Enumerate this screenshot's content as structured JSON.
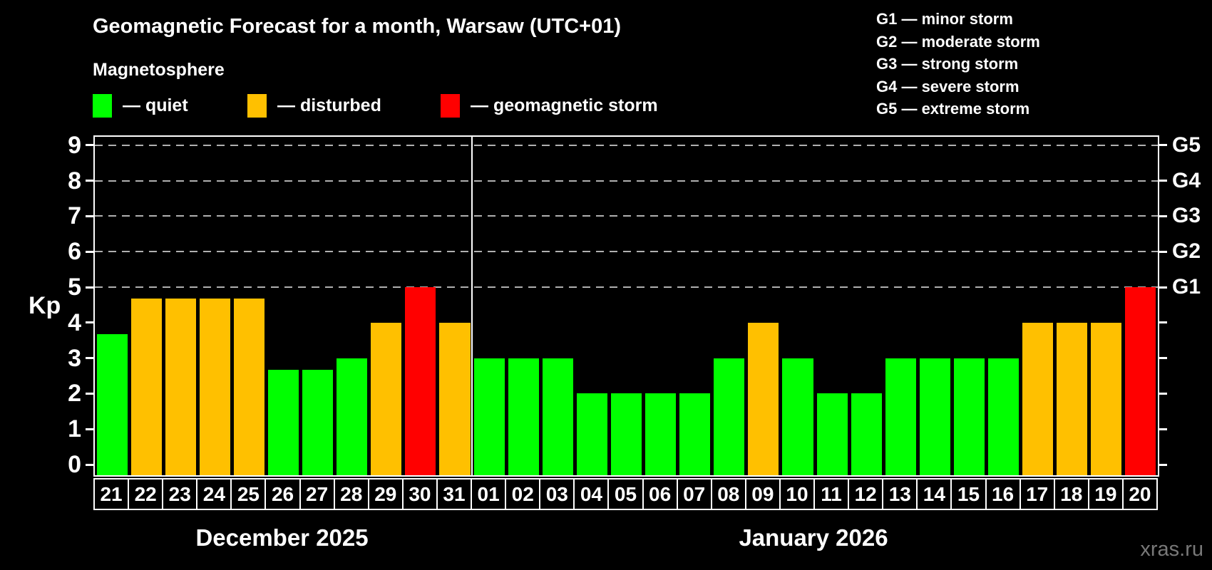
{
  "header": {
    "title": "Geomagnetic Forecast for a month, Warsaw (UTC+01)",
    "subtitle": "Magnetosphere"
  },
  "legend": {
    "items": [
      {
        "key": "quiet",
        "label": "— quiet",
        "color": "#00ff00"
      },
      {
        "key": "disturbed",
        "label": "— disturbed",
        "color": "#ffc000"
      },
      {
        "key": "storm",
        "label": "— geomagnetic storm",
        "color": "#ff0000"
      }
    ]
  },
  "storm_scale_legend": {
    "items": [
      {
        "level": "G1",
        "label": "G1 — minor storm"
      },
      {
        "level": "G2",
        "label": "G2 — moderate storm"
      },
      {
        "level": "G3",
        "label": "G3 — strong storm"
      },
      {
        "level": "G4",
        "label": "G4 — severe storm"
      },
      {
        "level": "G5",
        "label": "G5 — extreme storm"
      }
    ]
  },
  "chart_data": {
    "type": "bar",
    "ylabel": "Kp",
    "ylim": [
      0,
      9
    ],
    "yticks": [
      0,
      1,
      2,
      3,
      4,
      5,
      6,
      7,
      8,
      9
    ],
    "gridlines_at": [
      5,
      6,
      7,
      8,
      9
    ],
    "grid_color": "#b0b0b0",
    "right_axis_labels": [
      {
        "kp": 5,
        "label": "G1"
      },
      {
        "kp": 6,
        "label": "G2"
      },
      {
        "kp": 7,
        "label": "G3"
      },
      {
        "kp": 8,
        "label": "G4"
      },
      {
        "kp": 9,
        "label": "G5"
      }
    ],
    "status_colors": {
      "quiet": "#00ff00",
      "disturbed": "#ffc000",
      "storm": "#ff0000"
    },
    "months": [
      {
        "name": "December 2025",
        "days": [
          {
            "day": "21",
            "kp": 3.67,
            "status": "quiet"
          },
          {
            "day": "22",
            "kp": 4.67,
            "status": "disturbed"
          },
          {
            "day": "23",
            "kp": 4.67,
            "status": "disturbed"
          },
          {
            "day": "24",
            "kp": 4.67,
            "status": "disturbed"
          },
          {
            "day": "25",
            "kp": 4.67,
            "status": "disturbed"
          },
          {
            "day": "26",
            "kp": 2.67,
            "status": "quiet"
          },
          {
            "day": "27",
            "kp": 2.67,
            "status": "quiet"
          },
          {
            "day": "28",
            "kp": 3,
            "status": "quiet"
          },
          {
            "day": "29",
            "kp": 4,
            "status": "disturbed"
          },
          {
            "day": "30",
            "kp": 5,
            "status": "storm"
          },
          {
            "day": "31",
            "kp": 4,
            "status": "disturbed"
          }
        ]
      },
      {
        "name": "January 2026",
        "days": [
          {
            "day": "01",
            "kp": 3,
            "status": "quiet"
          },
          {
            "day": "02",
            "kp": 3,
            "status": "quiet"
          },
          {
            "day": "03",
            "kp": 3,
            "status": "quiet"
          },
          {
            "day": "04",
            "kp": 2,
            "status": "quiet"
          },
          {
            "day": "05",
            "kp": 2,
            "status": "quiet"
          },
          {
            "day": "06",
            "kp": 2,
            "status": "quiet"
          },
          {
            "day": "07",
            "kp": 2,
            "status": "quiet"
          },
          {
            "day": "08",
            "kp": 3,
            "status": "quiet"
          },
          {
            "day": "09",
            "kp": 4,
            "status": "disturbed"
          },
          {
            "day": "10",
            "kp": 3,
            "status": "quiet"
          },
          {
            "day": "11",
            "kp": 2,
            "status": "quiet"
          },
          {
            "day": "12",
            "kp": 2,
            "status": "quiet"
          },
          {
            "day": "13",
            "kp": 3,
            "status": "quiet"
          },
          {
            "day": "14",
            "kp": 3,
            "status": "quiet"
          },
          {
            "day": "15",
            "kp": 3,
            "status": "quiet"
          },
          {
            "day": "16",
            "kp": 3,
            "status": "quiet"
          },
          {
            "day": "17",
            "kp": 4,
            "status": "disturbed"
          },
          {
            "day": "18",
            "kp": 4,
            "status": "disturbed"
          },
          {
            "day": "19",
            "kp": 4,
            "status": "disturbed"
          },
          {
            "day": "20",
            "kp": 5,
            "status": "storm"
          }
        ]
      }
    ]
  },
  "watermark": "xras.ru"
}
